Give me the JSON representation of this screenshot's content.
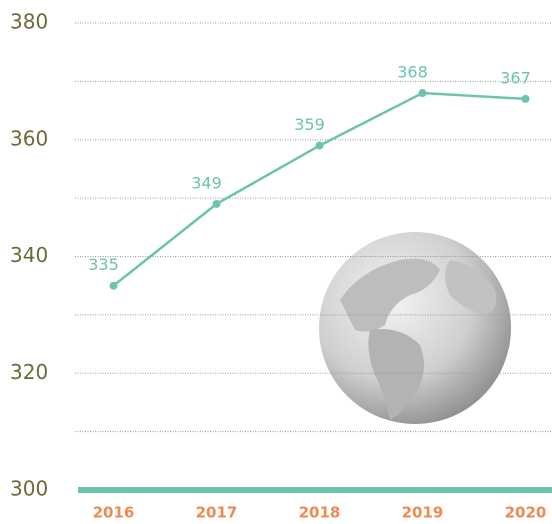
{
  "chart_data": {
    "type": "line",
    "categories": [
      "2016",
      "2017",
      "2018",
      "2019",
      "2020"
    ],
    "values": [
      335,
      349,
      359,
      368,
      367
    ],
    "color": "#6cc4ae",
    "ylim": [
      300,
      380
    ],
    "yticks": [
      300,
      320,
      340,
      360,
      380
    ],
    "minor_yticks": [
      310,
      330,
      350,
      370
    ],
    "grid": true
  }
}
